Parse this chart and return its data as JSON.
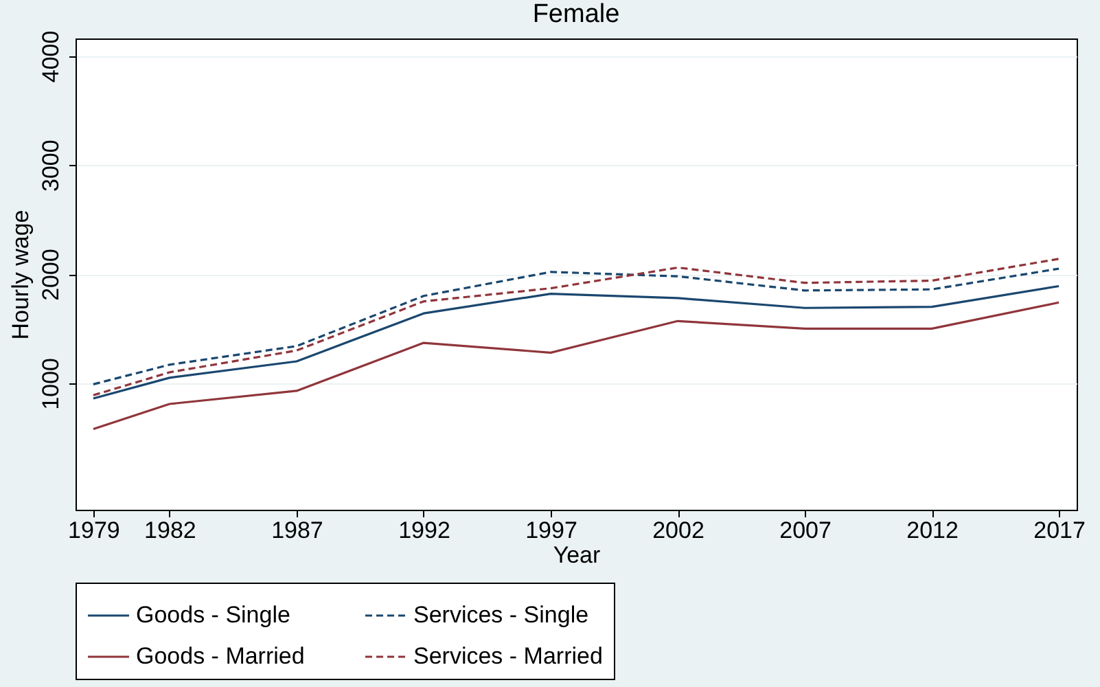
{
  "chart_data": {
    "type": "line",
    "title": "Female",
    "xlabel": "Year",
    "ylabel": "Hourly wage",
    "x": [
      1979,
      1982,
      1987,
      1992,
      1997,
      2002,
      2007,
      2012,
      2017
    ],
    "xlim": [
      1978.3,
      2017.7
    ],
    "xticks": [
      1979,
      1982,
      1987,
      1992,
      1997,
      2002,
      2007,
      2012,
      2017
    ],
    "ylim": [
      -160,
      4160
    ],
    "yticks": [
      1000,
      2000,
      3000,
      4000
    ],
    "grid": "y",
    "legend": "bottom",
    "marker": "none",
    "series": [
      {
        "name": "Goods - Single",
        "color": "#1a476f",
        "line_style": "solid",
        "values": [
          860,
          1050,
          1200,
          1640,
          1820,
          1780,
          1690,
          1700,
          1890
        ]
      },
      {
        "name": "Services - Single",
        "color": "#1a476f",
        "line_style": "dashed",
        "values": [
          990,
          1170,
          1340,
          1800,
          2020,
          1980,
          1850,
          1860,
          2050
        ]
      },
      {
        "name": "Goods - Married",
        "color": "#90353b",
        "line_style": "solid",
        "values": [
          580,
          810,
          930,
          1370,
          1280,
          1570,
          1500,
          1500,
          1740
        ]
      },
      {
        "name": "Services - Married",
        "color": "#90353b",
        "line_style": "dashed",
        "values": [
          890,
          1100,
          1300,
          1750,
          1870,
          2060,
          1920,
          1940,
          2140
        ]
      }
    ]
  }
}
